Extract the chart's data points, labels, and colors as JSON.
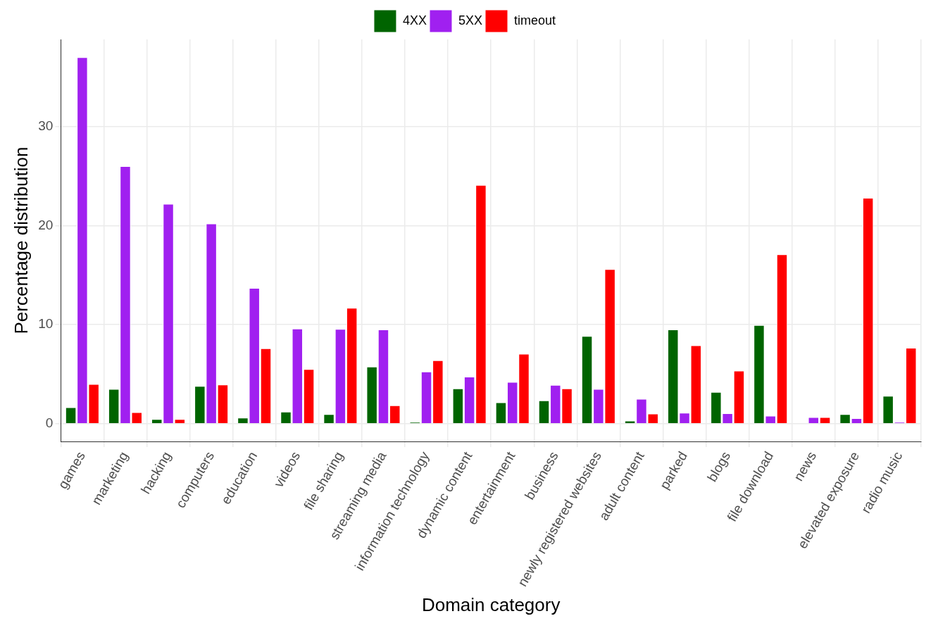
{
  "chart_data": {
    "type": "bar",
    "xlabel": "Domain category",
    "ylabel": "Percentage distribution",
    "categories": [
      "games",
      "marketing",
      "hacking",
      "computers",
      "education",
      "videos",
      "file sharing",
      "streaming media",
      "information technology",
      "dynamic content",
      "entertainment",
      "business",
      "newly registered websites",
      "adult content",
      "parked",
      "blogs",
      "file download",
      "news",
      "elevated exposure",
      "radio music"
    ],
    "series": [
      {
        "name": "4XX",
        "color": "#006400",
        "values": [
          1.65,
          3.5,
          0.45,
          3.8,
          0.6,
          1.2,
          0.95,
          5.75,
          0.15,
          3.55,
          2.15,
          2.35,
          8.85,
          0.3,
          9.5,
          3.2,
          9.95,
          null,
          0.95,
          2.8
        ]
      },
      {
        "name": "5XX",
        "color": "#a020f0",
        "values": [
          37.0,
          26.0,
          22.2,
          20.2,
          13.7,
          9.6,
          9.55,
          9.5,
          5.25,
          4.75,
          4.2,
          3.9,
          3.5,
          2.5,
          1.1,
          1.05,
          0.8,
          0.65,
          0.55,
          0.15
        ]
      },
      {
        "name": "timeout",
        "color": "#ff0000",
        "values": [
          4.0,
          1.15,
          0.45,
          3.95,
          7.6,
          5.5,
          11.7,
          1.85,
          6.4,
          24.1,
          7.05,
          3.55,
          15.6,
          1.0,
          7.9,
          5.35,
          17.1,
          0.65,
          22.8,
          7.65
        ]
      }
    ],
    "ylim": [
      -1.8,
      38.8
    ],
    "yticks": [
      0,
      10,
      20,
      30
    ],
    "grid": true,
    "legend": "top"
  }
}
